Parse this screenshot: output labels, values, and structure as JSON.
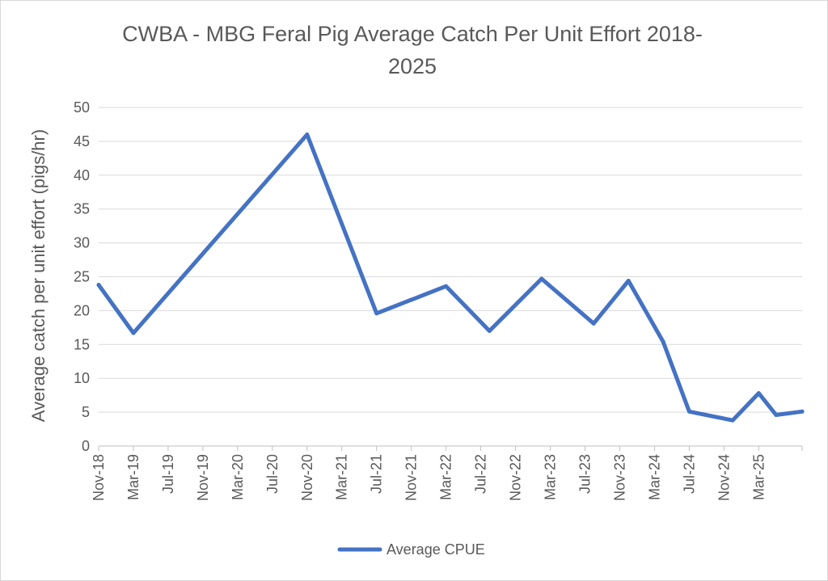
{
  "chart_data": {
    "type": "line",
    "title_line1": "CWBA - MBG Feral Pig Average Catch Per Unit Effort 2018-",
    "title_line2": "2025",
    "ylabel": "Average catch per unit effort (pigs/hr)",
    "xlabel": "",
    "ylim": [
      0,
      50
    ],
    "yticks": [
      0,
      5,
      10,
      15,
      20,
      25,
      30,
      35,
      40,
      45,
      50
    ],
    "x_range": [
      "2018-11",
      "2025-08"
    ],
    "x_tick_labels": [
      "Nov-18",
      "Mar-19",
      "Jul-19",
      "Nov-19",
      "Mar-20",
      "Jul-20",
      "Nov-20",
      "Mar-21",
      "Jul-21",
      "Nov-21",
      "Mar-22",
      "Jul-22",
      "Nov-22",
      "Mar-23",
      "Jul-23",
      "Nov-23",
      "Mar-24",
      "Jul-24",
      "Nov-24",
      "Mar-25"
    ],
    "grid": true,
    "legend_position": "bottom",
    "color": "#4472c4",
    "series": [
      {
        "name": "Average CPUE",
        "points": [
          {
            "x": "2018-11",
            "y": 23.8
          },
          {
            "x": "2019-03",
            "y": 16.7
          },
          {
            "x": "2020-11",
            "y": 46.0
          },
          {
            "x": "2021-07",
            "y": 19.6
          },
          {
            "x": "2022-03",
            "y": 23.6
          },
          {
            "x": "2022-08",
            "y": 17.0
          },
          {
            "x": "2023-02",
            "y": 24.7
          },
          {
            "x": "2023-08",
            "y": 18.1
          },
          {
            "x": "2023-12",
            "y": 24.4
          },
          {
            "x": "2024-04",
            "y": 15.4
          },
          {
            "x": "2024-07",
            "y": 5.1
          },
          {
            "x": "2024-12",
            "y": 3.8
          },
          {
            "x": "2025-03",
            "y": 7.8
          },
          {
            "x": "2025-05",
            "y": 4.6
          },
          {
            "x": "2025-08",
            "y": 5.1
          }
        ]
      }
    ]
  }
}
